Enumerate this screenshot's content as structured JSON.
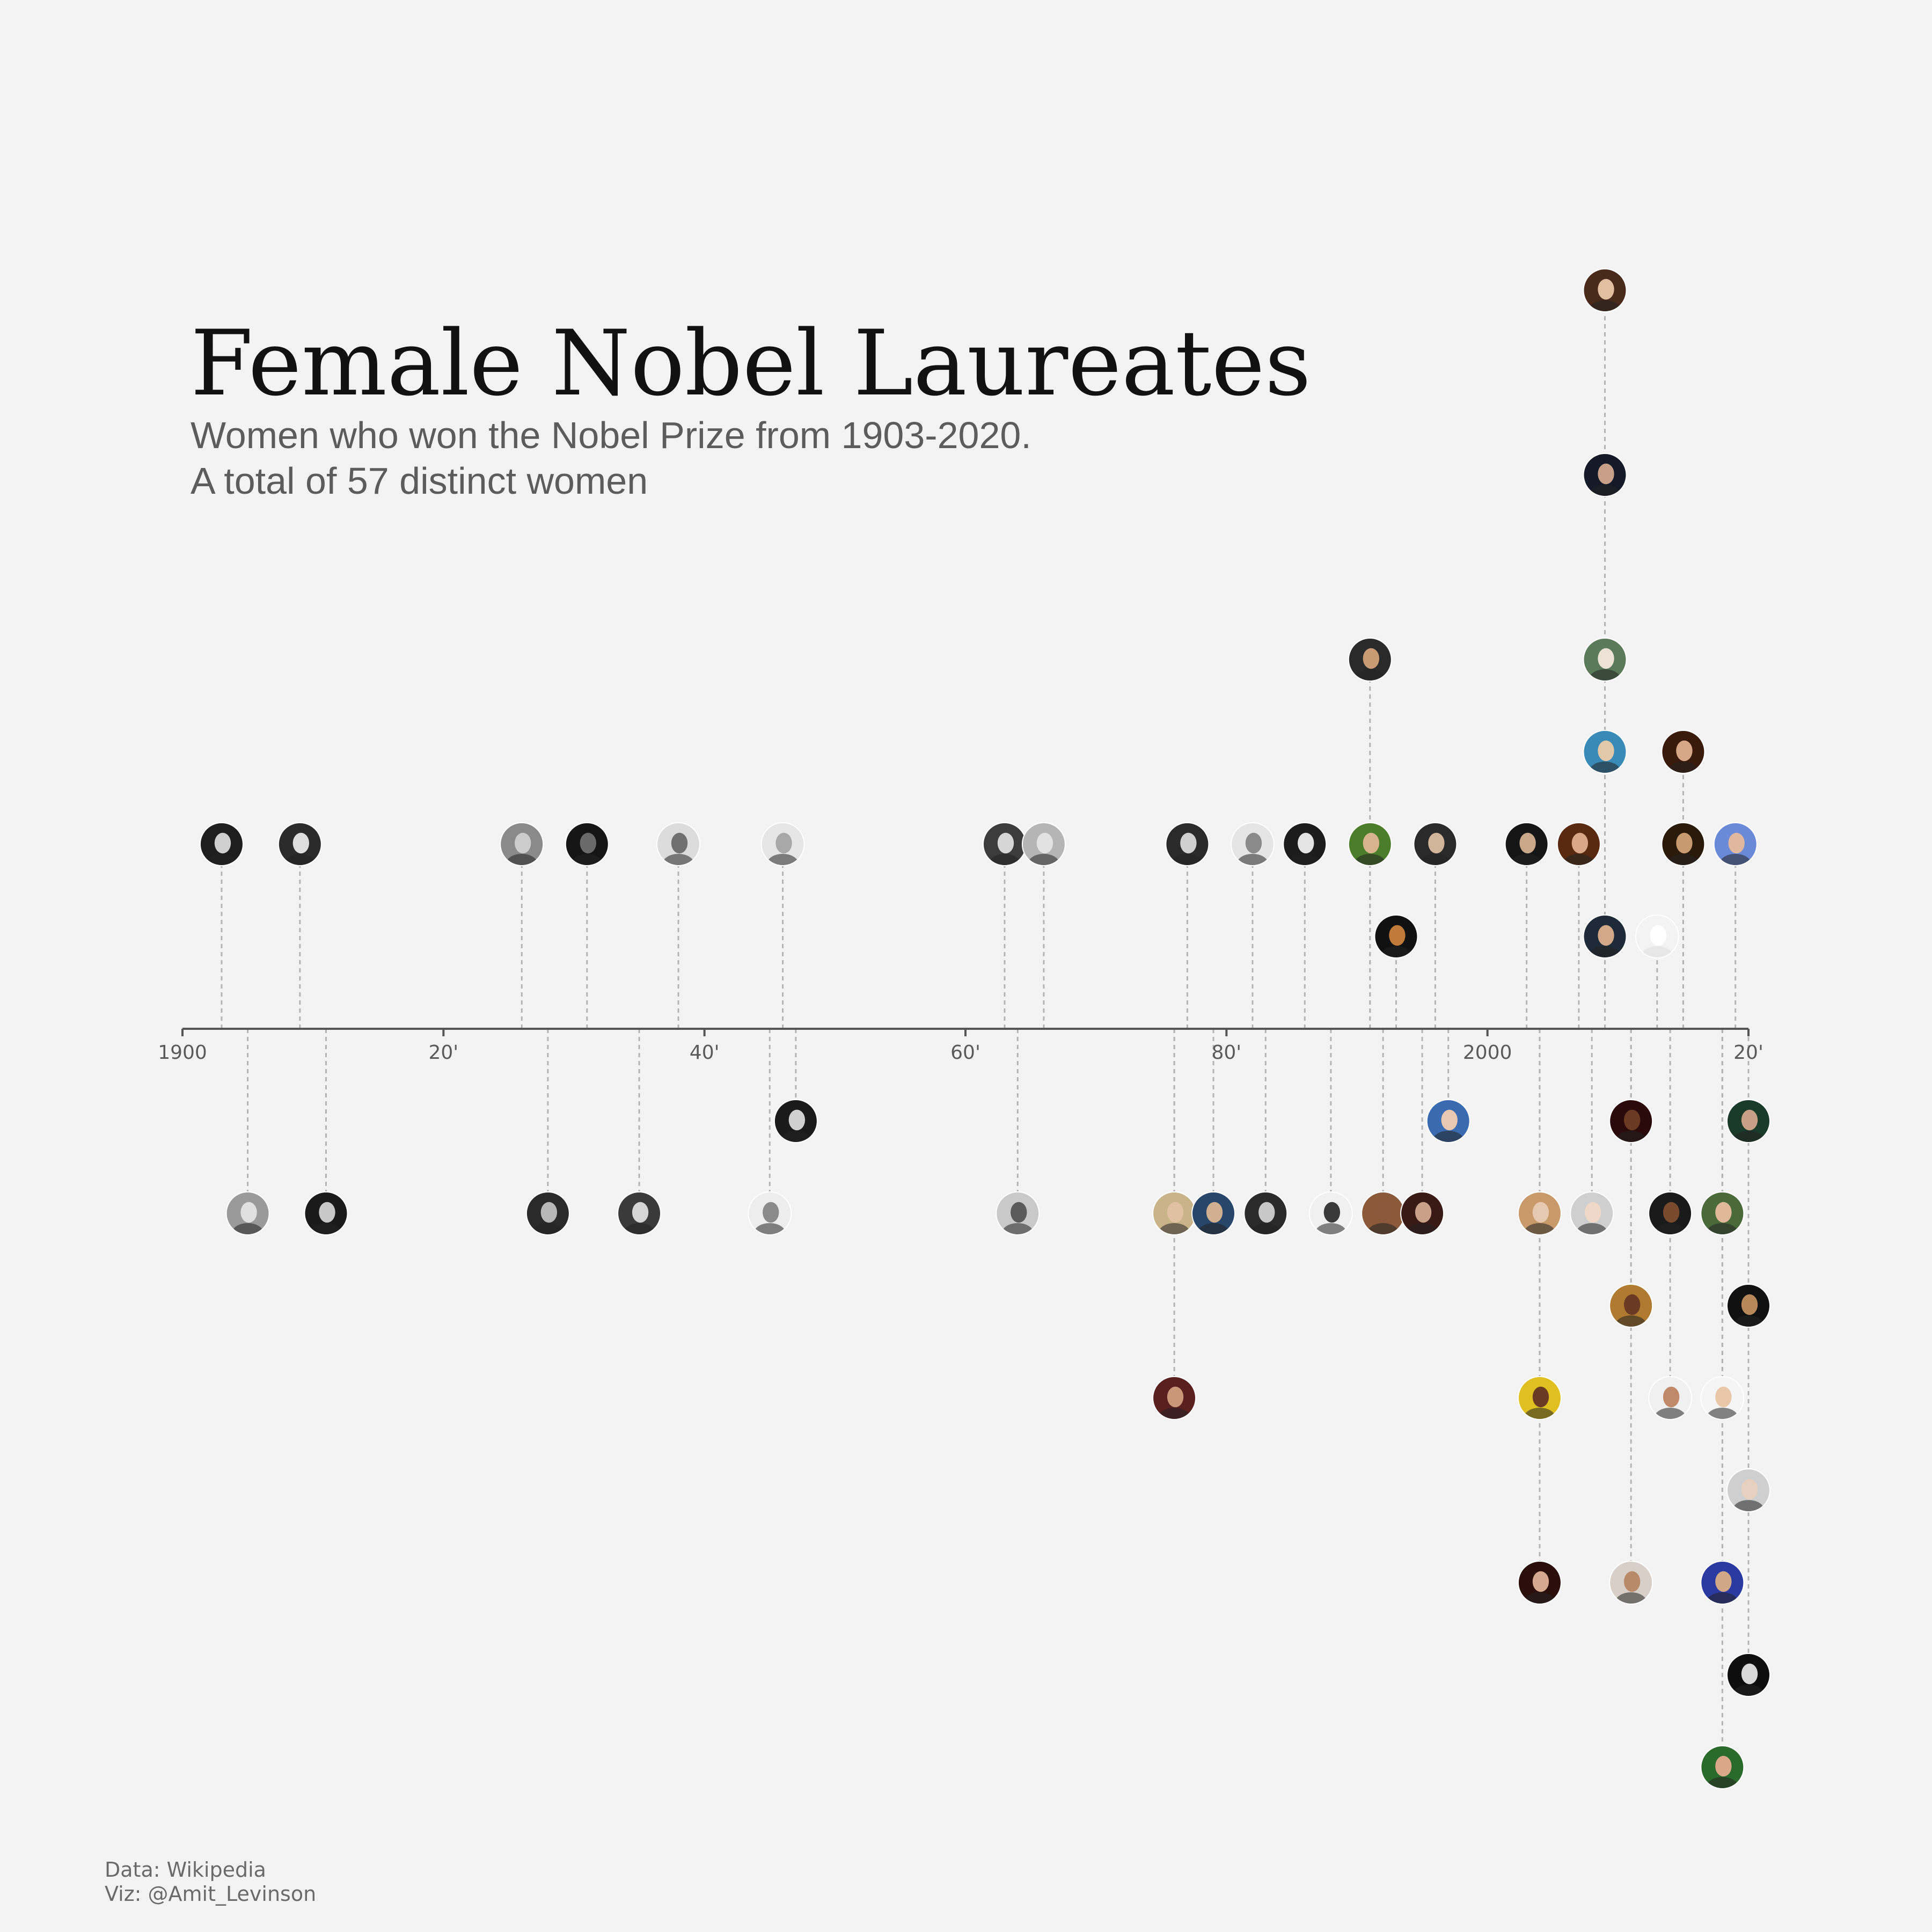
{
  "title": "Female Nobel Laureates",
  "subtitle_lines": [
    "Women who won the Nobel Prize from 1903-2020.",
    "A total of 57 distinct women"
  ],
  "caption_lines": [
    "Data: Wikipedia",
    "Viz: @Amit_Levinson"
  ],
  "colors": {
    "background": "#f3f3f3",
    "axis": "#555555",
    "stem": "#b4b4b4",
    "title": "#111111",
    "subtitle": "#5c5c5c"
  },
  "chart_data": {
    "type": "scatter",
    "xlabel": "",
    "ylabel": "",
    "xlim": [
      1900,
      2020
    ],
    "x_ticks": [
      {
        "value": 1900,
        "label": "1900"
      },
      {
        "value": 1920,
        "label": "20'"
      },
      {
        "value": 1940,
        "label": "40'"
      },
      {
        "value": 1960,
        "label": "60'"
      },
      {
        "value": 1980,
        "label": "80'"
      },
      {
        "value": 2000,
        "label": "2000"
      },
      {
        "value": 2020,
        "label": "20'"
      }
    ],
    "grid": false,
    "points": [
      {
        "year": 1903,
        "level": 2,
        "bg": "#1e1e1e",
        "face": "#cfcfcf"
      },
      {
        "year": 1905,
        "level": -2,
        "bg": "#9a9a9a",
        "face": "#e0e0e0"
      },
      {
        "year": 1909,
        "level": 2,
        "bg": "#2b2b2b",
        "face": "#dedede"
      },
      {
        "year": 1911,
        "level": -2,
        "bg": "#1a1a1a",
        "face": "#c8c8c8"
      },
      {
        "year": 1926,
        "level": 2,
        "bg": "#8a8a8a",
        "face": "#cccccc"
      },
      {
        "year": 1928,
        "level": -2,
        "bg": "#2a2a2a",
        "face": "#b8b8b8"
      },
      {
        "year": 1931,
        "level": 2,
        "bg": "#151515",
        "face": "#6a6a6a"
      },
      {
        "year": 1935,
        "level": -2,
        "bg": "#3a3a3a",
        "face": "#d5d5d5"
      },
      {
        "year": 1938,
        "level": 2,
        "bg": "#dcdcdc",
        "face": "#707070"
      },
      {
        "year": 1945,
        "level": -2,
        "bg": "#ededed",
        "face": "#8a8a8a"
      },
      {
        "year": 1946,
        "level": 2,
        "bg": "#e6e6e6",
        "face": "#a8a8a8"
      },
      {
        "year": 1947,
        "level": -1,
        "bg": "#1a1a1a",
        "face": "#d0d0d0"
      },
      {
        "year": 1963,
        "level": 2,
        "bg": "#3c3c3c",
        "face": "#d6d6d6"
      },
      {
        "year": 1964,
        "level": -2,
        "bg": "#c9c9c9",
        "face": "#5a5a5a"
      },
      {
        "year": 1966,
        "level": 2,
        "bg": "#b5b5b5",
        "face": "#e2e2e2"
      },
      {
        "year": 1976,
        "level": -2,
        "bg": "#c9b48a",
        "face": "#e0c2a2"
      },
      {
        "year": 1976,
        "level": -4,
        "bg": "#5a1f1f",
        "face": "#c99878"
      },
      {
        "year": 1977,
        "level": 2,
        "bg": "#2a2a2a",
        "face": "#cfcfcf"
      },
      {
        "year": 1979,
        "level": -2,
        "bg": "#27466a",
        "face": "#d0b090"
      },
      {
        "year": 1982,
        "level": 2,
        "bg": "#e5e5e5",
        "face": "#8a8a8a"
      },
      {
        "year": 1983,
        "level": -2,
        "bg": "#2b2b2b",
        "face": "#c8c8c8"
      },
      {
        "year": 1986,
        "level": 2,
        "bg": "#1c1c1c",
        "face": "#e4e4e4"
      },
      {
        "year": 1988,
        "level": -2,
        "bg": "#f0f0f0",
        "face": "#3a3a3a"
      },
      {
        "year": 1991,
        "level": 2,
        "bg": "#4c7d2a",
        "face": "#d8b48e"
      },
      {
        "year": 1991,
        "level": 4,
        "bg": "#2a2a2a",
        "face": "#c89b74"
      },
      {
        "year": 1992,
        "level": -2,
        "bg": "#8a5a3a",
        "face": "#8b5a3c"
      },
      {
        "year": 1993,
        "level": 1,
        "bg": "#111111",
        "face": "#c07a3a"
      },
      {
        "year": 1995,
        "level": -2,
        "bg": "#3a1a14",
        "face": "#c9a088"
      },
      {
        "year": 1996,
        "level": 2,
        "bg": "#2a2a2a",
        "face": "#d2b49a"
      },
      {
        "year": 1997,
        "level": -1,
        "bg": "#3a6ab0",
        "face": "#e8c8b0"
      },
      {
        "year": 2003,
        "level": 2,
        "bg": "#151515",
        "face": "#c9a88a"
      },
      {
        "year": 2004,
        "level": -2,
        "bg": "#c89a6a",
        "face": "#e6c9b0"
      },
      {
        "year": 2004,
        "level": -4,
        "bg": "#e0c020",
        "face": "#6a3a22"
      },
      {
        "year": 2004,
        "level": -6,
        "bg": "#2a0f0a",
        "face": "#d6a890"
      },
      {
        "year": 2007,
        "level": 2,
        "bg": "#5a2a10",
        "face": "#d8a888"
      },
      {
        "year": 2008,
        "level": -2,
        "bg": "#cfcfcf",
        "face": "#f0d8c8"
      },
      {
        "year": 2009,
        "level": 8,
        "bg": "#4a2a1a",
        "face": "#e0c0a0"
      },
      {
        "year": 2009,
        "level": 6,
        "bg": "#141a28",
        "face": "#c8a08a"
      },
      {
        "year": 2009,
        "level": 4,
        "bg": "#5a7a5a",
        "face": "#ede2d6"
      },
      {
        "year": 2009,
        "level": 3,
        "bg": "#3a8ab8",
        "face": "#e0c8a8"
      },
      {
        "year": 2009,
        "level": 1,
        "bg": "#1e2a38",
        "face": "#d2a888"
      },
      {
        "year": 2011,
        "level": -1,
        "bg": "#2a0a0a",
        "face": "#6a3a22"
      },
      {
        "year": 2011,
        "level": -3,
        "bg": "#b07a30",
        "face": "#6a3a22"
      },
      {
        "year": 2011,
        "level": -6,
        "bg": "#d8d0c8",
        "face": "#b88a6a"
      },
      {
        "year": 2013,
        "level": 1,
        "bg": "#f3f3f3",
        "face": "#ffffff"
      },
      {
        "year": 2014,
        "level": -2,
        "bg": "#1a1a1a",
        "face": "#7a4a2e"
      },
      {
        "year": 2014,
        "level": -4,
        "bg": "#f0f0f0",
        "face": "#c08a6a"
      },
      {
        "year": 2015,
        "level": 3,
        "bg": "#3a1a0a",
        "face": "#d6a888"
      },
      {
        "year": 2015,
        "level": 2,
        "bg": "#2a1a0a",
        "face": "#c89a70"
      },
      {
        "year": 2018,
        "level": -2,
        "bg": "#4a6a3a",
        "face": "#e0b89a"
      },
      {
        "year": 2018,
        "level": -4,
        "bg": "#f5f5f5",
        "face": "#e8c8a8"
      },
      {
        "year": 2018,
        "level": -6,
        "bg": "#2a3aa0",
        "face": "#d0a888"
      },
      {
        "year": 2018,
        "level": -8,
        "bg": "#2a6a2a",
        "face": "#d8a888"
      },
      {
        "year": 2019,
        "level": 2,
        "bg": "#6a8ad8",
        "face": "#e0b8a0"
      },
      {
        "year": 2020,
        "level": -1,
        "bg": "#1a3a2a",
        "face": "#c8a088"
      },
      {
        "year": 2020,
        "level": -3,
        "bg": "#111111",
        "face": "#b8885a"
      },
      {
        "year": 2020,
        "level": -5,
        "bg": "#cfcfcf",
        "face": "#e8d0c0"
      },
      {
        "year": 2020,
        "level": -7,
        "bg": "#0e0e0e",
        "face": "#d8d8d8"
      }
    ]
  }
}
